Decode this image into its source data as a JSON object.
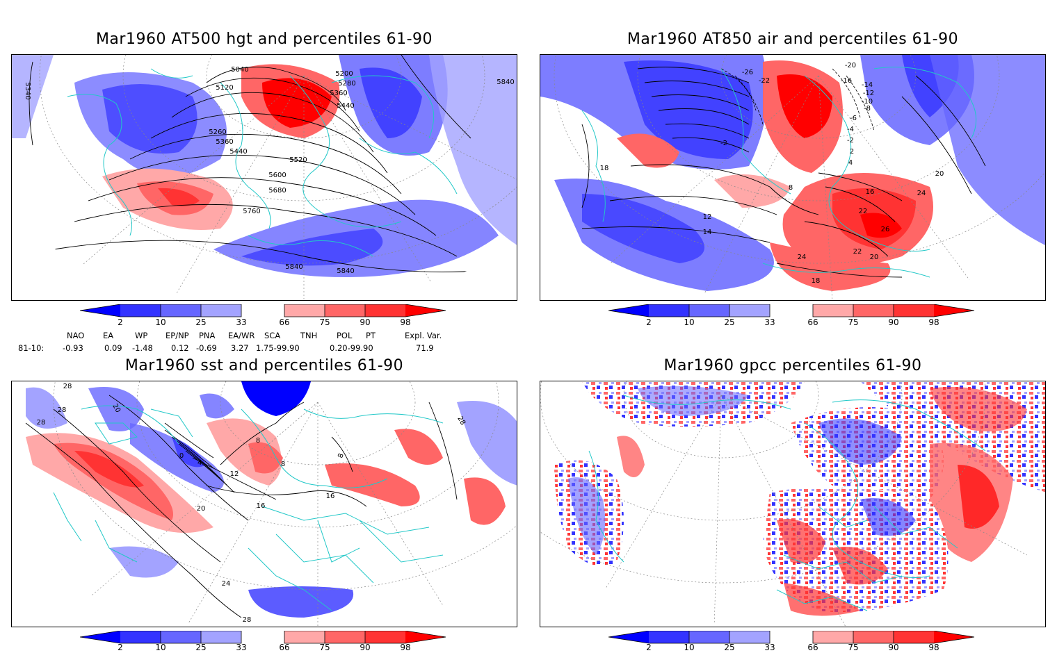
{
  "panels": {
    "p1": {
      "title": "Mar1960 AT500 hgt and percentiles 61-90",
      "contour_labels": [
        "5040",
        "5120",
        "5200",
        "5280",
        "5360",
        "5440",
        "5260",
        "5360",
        "5440",
        "5520",
        "5600",
        "5680",
        "5760",
        "5840",
        "5840",
        "5840",
        "5340"
      ]
    },
    "p2": {
      "title": "Mar1960 AT850 air and percentiles 61-90",
      "contour_labels": [
        "-26",
        "-22",
        "-20",
        "-16",
        "-14",
        "-12",
        "-10",
        "-8",
        "-6",
        "-4",
        "-2",
        "2",
        "4",
        "8",
        "12",
        "14",
        "16",
        "18",
        "20",
        "22",
        "24",
        "26"
      ]
    },
    "p3": {
      "title": "Mar1960 sst and percentiles 61-90",
      "contour_labels": [
        "28",
        "28",
        "28",
        "20",
        "0",
        "4",
        "8",
        "12",
        "16",
        "20",
        "24",
        "28",
        "16",
        "8"
      ]
    },
    "p4": {
      "title": "Mar1960 gpcc percentiles 61-90"
    }
  },
  "colorbar": {
    "labels": [
      "2",
      "10",
      "25",
      "33",
      "66",
      "75",
      "90",
      "98"
    ],
    "colors": [
      "#0000ff",
      "#3333ff",
      "#6666ff",
      "#a3a3ff",
      "#ffa8a8",
      "#ff6666",
      "#ff3333",
      "#ff0000"
    ]
  },
  "indices": {
    "headers": [
      "NAO",
      "EA",
      "WP",
      "EP/NP",
      "PNA",
      "EA/WR",
      "SCA",
      "TNH",
      "POL",
      "PT",
      "Expl. Var."
    ],
    "row_label": "81-10:",
    "values": [
      "-0.93",
      "0.09",
      "-1.48",
      "0.12",
      "-0.69",
      "3.27",
      "1.75-99.90",
      "0.20-99.90",
      "71.9"
    ]
  },
  "map_colors": {
    "coast": "#22c8c8",
    "grid": "#888888",
    "contour": "#000000"
  }
}
